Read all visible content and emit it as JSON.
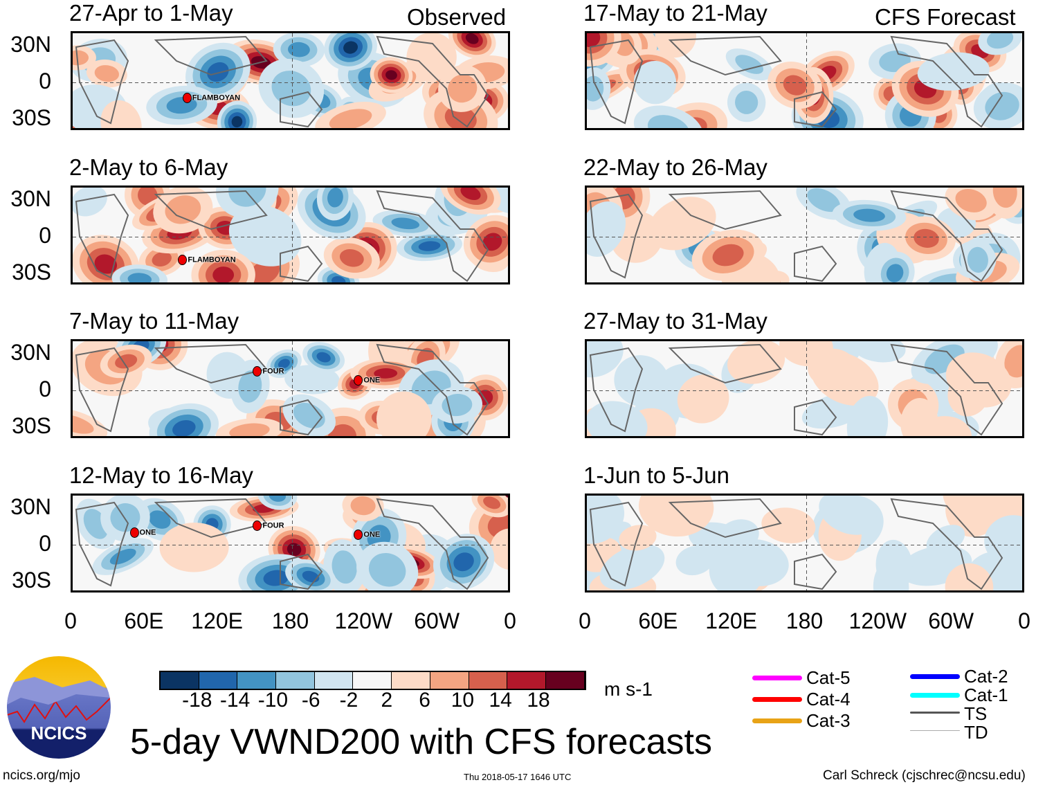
{
  "title": "5-day VWND200 with CFS forecasts",
  "headers": {
    "left": "Observed",
    "right": "CFS Forecast"
  },
  "panels_left": [
    {
      "title": "27-Apr to 1-May",
      "storms": [
        "FLAMBOYAN"
      ]
    },
    {
      "title": "2-May to 6-May",
      "storms": [
        "FLAMBOYAN"
      ]
    },
    {
      "title": "7-May to 11-May",
      "storms": [
        "FOUR",
        "ONE"
      ]
    },
    {
      "title": "12-May to 16-May",
      "storms": [
        "ONE",
        "FOUR",
        "ONE"
      ]
    }
  ],
  "panels_right": [
    {
      "title": "17-May to 21-May"
    },
    {
      "title": "22-May to 26-May"
    },
    {
      "title": "27-May to 31-May"
    },
    {
      "title": "1-Jun to 5-Jun"
    }
  ],
  "lat_labels": [
    "30N",
    "0",
    "30S"
  ],
  "lon_labels": [
    "0",
    "60E",
    "120E",
    "180",
    "120W",
    "60W",
    "0"
  ],
  "colorbar": {
    "colors": [
      "#0b3463",
      "#2166ac",
      "#4393c3",
      "#92c5de",
      "#d1e5f0",
      "#f7f7f7",
      "#fddbc7",
      "#f4a582",
      "#d6604d",
      "#b2182b",
      "#67001f"
    ],
    "labels": [
      "-18",
      "-14",
      "-10",
      "-6",
      "-2",
      "2",
      "6",
      "10",
      "14",
      "18"
    ],
    "units": "m s-1"
  },
  "legend": [
    {
      "label": "Cat-5",
      "color": "#ff00ff"
    },
    {
      "label": "Cat-4",
      "color": "#ff0000"
    },
    {
      "label": "Cat-3",
      "color": "#e8a317"
    },
    {
      "label": "Cat-2",
      "color": "#0000ff"
    },
    {
      "label": "Cat-1",
      "color": "#00ffff"
    },
    {
      "label": "TS",
      "color": "#555555"
    },
    {
      "label": "TD",
      "color": "#aaaaaa"
    }
  ],
  "logo": "NCICS",
  "footer": {
    "left": "ncics.org/mjo",
    "center": "Thu 2018-05-17 1646 UTC",
    "right": "Carl Schreck (cjschrec@ncsu.edu)"
  }
}
